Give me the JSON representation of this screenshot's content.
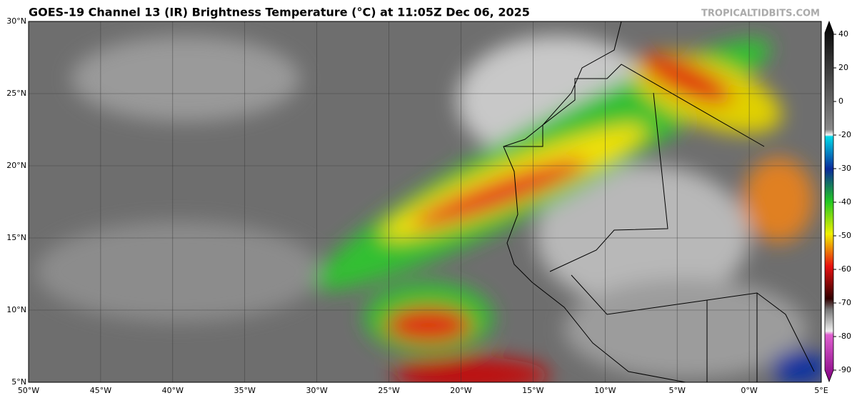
{
  "title": "GOES-19 Channel 13 (IR) Brightness Temperature (°C) at 11:05Z Dec 06, 2025",
  "watermark": "TROPICALTIDBITS.COM",
  "map": {
    "lat_ticks": [
      {
        "value": 30,
        "label": "30°N"
      },
      {
        "value": 25,
        "label": "25°N"
      },
      {
        "value": 20,
        "label": "20°N"
      },
      {
        "value": 15,
        "label": "15°N"
      },
      {
        "value": 10,
        "label": "10°N"
      },
      {
        "value": 5,
        "label": "5°N"
      }
    ],
    "lon_ticks": [
      {
        "value": -50,
        "label": "50°W"
      },
      {
        "value": -45,
        "label": "45°W"
      },
      {
        "value": -40,
        "label": "40°W"
      },
      {
        "value": -35,
        "label": "35°W"
      },
      {
        "value": -30,
        "label": "30°W"
      },
      {
        "value": -25,
        "label": "25°W"
      },
      {
        "value": -20,
        "label": "20°W"
      },
      {
        "value": -15,
        "label": "15°W"
      },
      {
        "value": -10,
        "label": "10°W"
      },
      {
        "value": -5,
        "label": "5°W"
      },
      {
        "value": 0,
        "label": "0°W"
      },
      {
        "value": 5,
        "label": "5°E"
      }
    ]
  },
  "colorbar": {
    "ticks": [
      40,
      20,
      0,
      -20,
      -30,
      -40,
      -50,
      -60,
      -70,
      -80,
      -90
    ]
  }
}
